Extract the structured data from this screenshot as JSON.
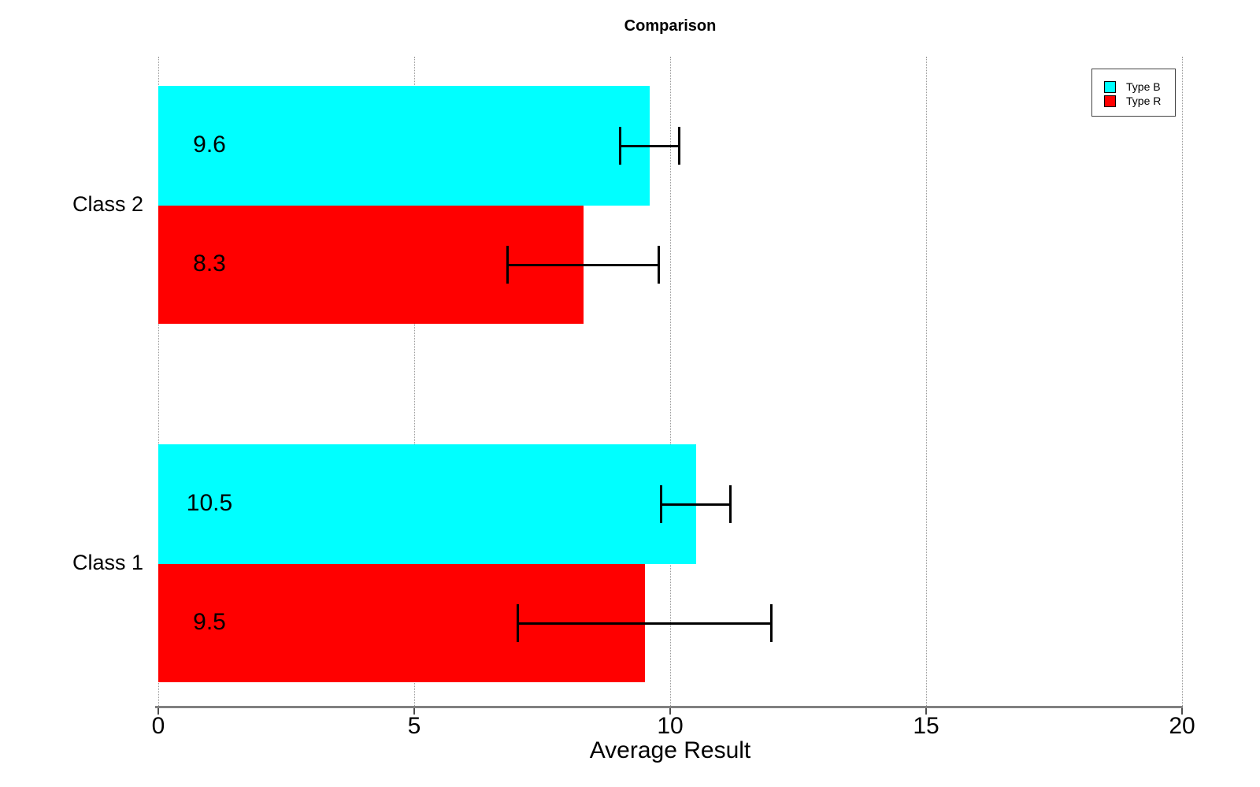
{
  "title": "Comparison",
  "colors": {
    "type_b": "#00ffff",
    "type_r": "#ff0000",
    "axis_line": "#808080",
    "gridline": "#9a9a9a",
    "text": "#000000",
    "error_bar": "#000000",
    "legend_border": "#444444"
  },
  "legend": {
    "position": "top-right",
    "entries": [
      {
        "label": "Type B",
        "color": "#00ffff"
      },
      {
        "label": "Type R",
        "color": "#ff0000"
      }
    ]
  },
  "chart_data": {
    "type": "bar",
    "orientation": "horizontal",
    "title": "Comparison",
    "xlabel": "Average Result",
    "ylabel": "",
    "xlim": [
      0,
      20
    ],
    "xticks": [
      0,
      5,
      10,
      15,
      20
    ],
    "grid": "vertical-dotted",
    "legend_position": "top-right",
    "categories_top_to_bottom": [
      "Class 2",
      "Class 1"
    ],
    "series": [
      {
        "name": "Type B",
        "color": "#00ffff",
        "values": [
          9.6,
          10.5
        ],
        "value_labels": [
          "9.6",
          "10.5"
        ],
        "errors": [
          0.6,
          0.7
        ]
      },
      {
        "name": "Type R",
        "color": "#ff0000",
        "values": [
          8.3,
          9.5
        ],
        "value_labels": [
          "8.3",
          "9.5"
        ],
        "errors": [
          1.5,
          2.5
        ]
      }
    ]
  }
}
